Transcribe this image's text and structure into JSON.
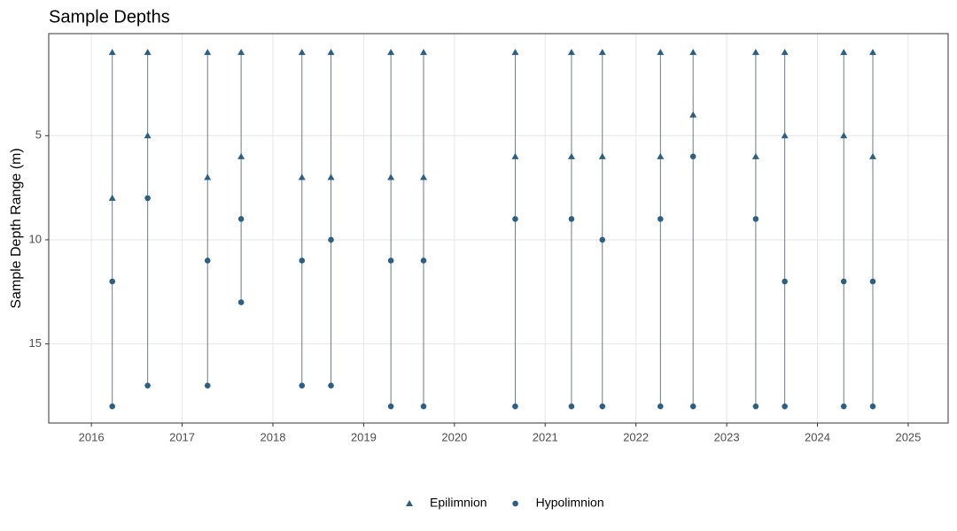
{
  "chart_data": {
    "type": "scatter",
    "title": "Sample Depths",
    "y_label": "Sample Depth Range (m)",
    "xlim": [
      2015.53,
      2025.44
    ],
    "xticks": [
      2016,
      2017,
      2018,
      2019,
      2020,
      2021,
      2022,
      2023,
      2024,
      2025
    ],
    "ylim": [
      0.1,
      18.8
    ],
    "yticks": [
      5,
      10,
      15
    ],
    "y_reversed": true,
    "grid": true,
    "legend_position": "bottom",
    "range_line_color": "#6e7b86",
    "series": [
      {
        "name": "Epilimnion",
        "color": "#2f5f80",
        "marker": "triangle",
        "x": [
          2016.23,
          2016.23,
          2016.62,
          2016.62,
          2017.28,
          2017.28,
          2017.65,
          2017.65,
          2018.32,
          2018.32,
          2018.64,
          2018.64,
          2019.3,
          2019.3,
          2019.66,
          2019.66,
          2020.67,
          2020.67,
          2021.29,
          2021.29,
          2021.63,
          2021.63,
          2022.27,
          2022.27,
          2022.63,
          2022.63,
          2023.32,
          2023.32,
          2023.64,
          2023.64,
          2024.29,
          2024.29,
          2024.61,
          2024.61
        ],
        "values": [
          1,
          8,
          1,
          5,
          1,
          7,
          1,
          6,
          1,
          7,
          1,
          7,
          1,
          7,
          1,
          7,
          1,
          6,
          1,
          6,
          1,
          6,
          1,
          6,
          1,
          4,
          1,
          6,
          1,
          5,
          1,
          5,
          1,
          6
        ]
      },
      {
        "name": "Hypolimnion",
        "color": "#2f5f80",
        "marker": "circle",
        "x": [
          2016.23,
          2016.23,
          2016.62,
          2016.62,
          2017.28,
          2017.28,
          2017.65,
          2017.65,
          2018.32,
          2018.32,
          2018.64,
          2018.64,
          2019.3,
          2019.3,
          2019.66,
          2019.66,
          2020.67,
          2020.67,
          2021.29,
          2021.29,
          2021.63,
          2021.63,
          2022.27,
          2022.27,
          2022.63,
          2022.63,
          2023.32,
          2023.32,
          2023.64,
          2023.64,
          2024.29,
          2024.29,
          2024.61,
          2024.61
        ],
        "values": [
          12,
          18,
          8,
          17,
          11,
          17,
          9,
          13,
          11,
          17,
          10,
          17,
          11,
          18,
          11,
          18,
          9,
          18,
          9,
          18,
          10,
          18,
          9,
          18,
          6,
          18,
          9,
          18,
          12,
          18,
          12,
          18,
          12,
          18
        ]
      }
    ]
  }
}
